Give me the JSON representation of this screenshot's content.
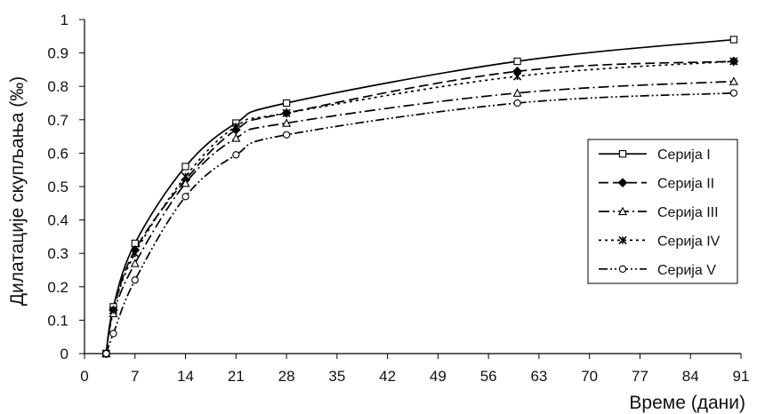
{
  "chart_data": {
    "type": "line",
    "title": "",
    "xlabel": "Време (дани)",
    "ylabel": "Дилатације скупљања (‰)",
    "xlim": [
      0,
      91
    ],
    "ylim": [
      0,
      1
    ],
    "x_ticks": [
      "0",
      "7",
      "14",
      "21",
      "28",
      "35",
      "42",
      "49",
      "56",
      "63",
      "70",
      "77",
      "84",
      "91"
    ],
    "y_ticks": [
      "0",
      "0.1",
      "0.2",
      "0.3",
      "0.4",
      "0.5",
      "0.6",
      "0.7",
      "0.8",
      "0.9",
      "1"
    ],
    "grid": false,
    "legend_position": "right",
    "series": [
      {
        "name": "Серија I",
        "marker": "square",
        "dash": "solid",
        "x": [
          3,
          4,
          7,
          14,
          21,
          28,
          60,
          90
        ],
        "values": [
          0,
          0.14,
          0.33,
          0.56,
          0.69,
          0.75,
          0.875,
          0.94
        ]
      },
      {
        "name": "Серија II",
        "marker": "diamond",
        "dash": "long-dash",
        "x": [
          3,
          4,
          7,
          14,
          21,
          28,
          60,
          90
        ],
        "values": [
          0,
          0.13,
          0.31,
          0.52,
          0.67,
          0.72,
          0.845,
          0.875
        ]
      },
      {
        "name": "Серија III",
        "marker": "triangle",
        "dash": "dash-dot",
        "x": [
          3,
          4,
          7,
          14,
          21,
          28,
          60,
          90
        ],
        "values": [
          0,
          0.12,
          0.27,
          0.51,
          0.645,
          0.69,
          0.78,
          0.815
        ]
      },
      {
        "name": "Серија IV",
        "marker": "asterisk",
        "dash": "dotted",
        "x": [
          3,
          4,
          7,
          14,
          21,
          28,
          60,
          90
        ],
        "values": [
          0,
          0.13,
          0.3,
          0.53,
          0.68,
          0.72,
          0.83,
          0.875
        ]
      },
      {
        "name": "Серија V",
        "marker": "circle",
        "dash": "dash-dot-dot",
        "x": [
          3,
          4,
          7,
          14,
          21,
          28,
          60,
          90
        ],
        "values": [
          0,
          0.06,
          0.22,
          0.47,
          0.595,
          0.655,
          0.75,
          0.78
        ]
      }
    ]
  }
}
